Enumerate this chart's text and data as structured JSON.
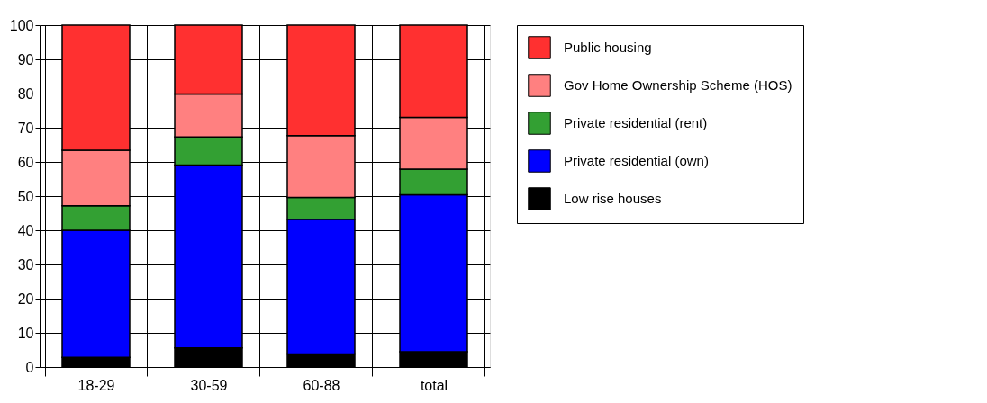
{
  "chart_data": {
    "type": "bar",
    "stacked": true,
    "categories": [
      "18-29",
      "30-59",
      "60-88",
      "total"
    ],
    "series": [
      {
        "name": "Low rise houses",
        "color": "#000000",
        "values": [
          2.8,
          5.6,
          3.8,
          4.5
        ]
      },
      {
        "name": "Private residential (own)",
        "color": "#0000ff",
        "values": [
          37.2,
          53.5,
          39.4,
          45.9
        ]
      },
      {
        "name": "Private residential (rent)",
        "color": "#33a033",
        "values": [
          7.2,
          8.2,
          6.4,
          7.5
        ]
      },
      {
        "name": "Gov Home Ownership Scheme (HOS)",
        "color": "#ff8080",
        "values": [
          16.2,
          12.6,
          18.1,
          15.1
        ]
      },
      {
        "name": "Public housing",
        "color": "#ff3030",
        "values": [
          36.6,
          20.1,
          32.3,
          27.0
        ]
      }
    ],
    "ylim": [
      0,
      100
    ],
    "yticks": [
      0,
      10,
      20,
      30,
      40,
      50,
      60,
      70,
      80,
      90,
      100
    ],
    "grid": true,
    "legend": "right"
  }
}
